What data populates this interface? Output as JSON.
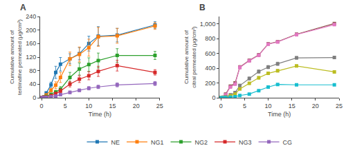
{
  "chart_data": [
    {
      "type": "line",
      "title": "A",
      "xlabel": "Time (h)",
      "ylabel": "Cumulative amount of\nterbinafine permeated (μg/cm²)",
      "x": [
        0,
        0.5,
        1,
        2,
        3,
        4,
        6,
        8,
        10,
        12,
        16,
        24
      ],
      "xlim": [
        -0.3,
        25
      ],
      "xticks": [
        0,
        5,
        10,
        15,
        20,
        25
      ],
      "ylim": [
        0,
        240
      ],
      "yticks": [
        0,
        40,
        80,
        120,
        160,
        200,
        240
      ],
      "marker": "square",
      "grid": false,
      "legend": "bottom",
      "series": [
        {
          "name": "NE",
          "values": [
            0,
            3,
            14,
            38,
            75,
            99,
            115,
            130,
            160,
            182,
            185,
            215
          ],
          "errors": [
            0,
            1,
            3,
            8,
            18,
            20,
            15,
            18,
            22,
            28,
            20,
            10
          ]
        },
        {
          "name": "NG1",
          "values": [
            0,
            2,
            8,
            22,
            37,
            60,
            115,
            128,
            148,
            180,
            183,
            212
          ],
          "errors": [
            0,
            1,
            2,
            5,
            10,
            15,
            20,
            22,
            25,
            28,
            22,
            10
          ]
        },
        {
          "name": "NG2",
          "values": [
            0,
            1,
            4,
            10,
            17,
            25,
            60,
            85,
            98,
            110,
            125,
            125
          ],
          "errors": [
            0,
            1,
            1,
            3,
            5,
            8,
            15,
            18,
            20,
            22,
            20,
            12
          ]
        },
        {
          "name": "NG3",
          "values": [
            0,
            1,
            2,
            6,
            12,
            20,
            40,
            55,
            65,
            78,
            95,
            75
          ],
          "errors": [
            0,
            0,
            1,
            2,
            4,
            6,
            8,
            10,
            12,
            15,
            16,
            8
          ]
        },
        {
          "name": "CG",
          "values": [
            0,
            0,
            1,
            3,
            5,
            9,
            16,
            22,
            28,
            32,
            38,
            42
          ],
          "errors": [
            0,
            0,
            0,
            1,
            2,
            3,
            4,
            4,
            5,
            5,
            6,
            6
          ]
        }
      ]
    },
    {
      "type": "line",
      "title": "B",
      "xlabel": "Time (h)",
      "ylabel": "Cumulative amount of\ncitral permeated (μg/cm²)",
      "x": [
        0,
        0.5,
        1,
        2,
        3,
        4,
        6,
        8,
        10,
        12,
        16,
        24
      ],
      "xlim": [
        -0.3,
        25
      ],
      "xticks": [
        0,
        5,
        10,
        15,
        20,
        25
      ],
      "ylim": [
        0,
        1100
      ],
      "yticks": [
        0,
        200,
        400,
        600,
        800,
        {
          "value": 1000,
          "label": "1,000"
        }
      ],
      "marker": "square",
      "grid": false,
      "series": [
        {
          "name": "NE",
          "values": [
            0,
            8,
            50,
            155,
            200,
            415,
            505,
            580,
            730,
            760,
            860,
            1005
          ],
          "errors": [
            0,
            2,
            6,
            15,
            18,
            22,
            20,
            20,
            15,
            15,
            18,
            15
          ]
        },
        {
          "name": "NG1",
          "values": [
            0,
            6,
            40,
            145,
            185,
            410,
            500,
            575,
            725,
            755,
            855,
            990
          ],
          "errors": [
            0,
            2,
            5,
            12,
            15,
            20,
            18,
            18,
            15,
            15,
            18,
            15
          ]
        },
        {
          "name": "NG2",
          "values": [
            0,
            3,
            12,
            40,
            70,
            165,
            260,
            355,
            415,
            460,
            540,
            545
          ],
          "errors": [
            0,
            1,
            3,
            8,
            10,
            18,
            20,
            22,
            22,
            22,
            18,
            15
          ]
        },
        {
          "name": "NG3",
          "values": [
            0,
            2,
            8,
            25,
            50,
            120,
            195,
            270,
            330,
            365,
            430,
            350
          ],
          "errors": [
            0,
            1,
            2,
            6,
            8,
            12,
            15,
            18,
            18,
            18,
            16,
            12
          ]
        },
        {
          "name": "CG",
          "values": [
            0,
            1,
            3,
            8,
            15,
            30,
            50,
            95,
            145,
            180,
            175,
            175
          ],
          "errors": [
            0,
            0,
            1,
            2,
            4,
            6,
            6,
            8,
            10,
            10,
            8,
            8
          ]
        }
      ]
    }
  ]
}
